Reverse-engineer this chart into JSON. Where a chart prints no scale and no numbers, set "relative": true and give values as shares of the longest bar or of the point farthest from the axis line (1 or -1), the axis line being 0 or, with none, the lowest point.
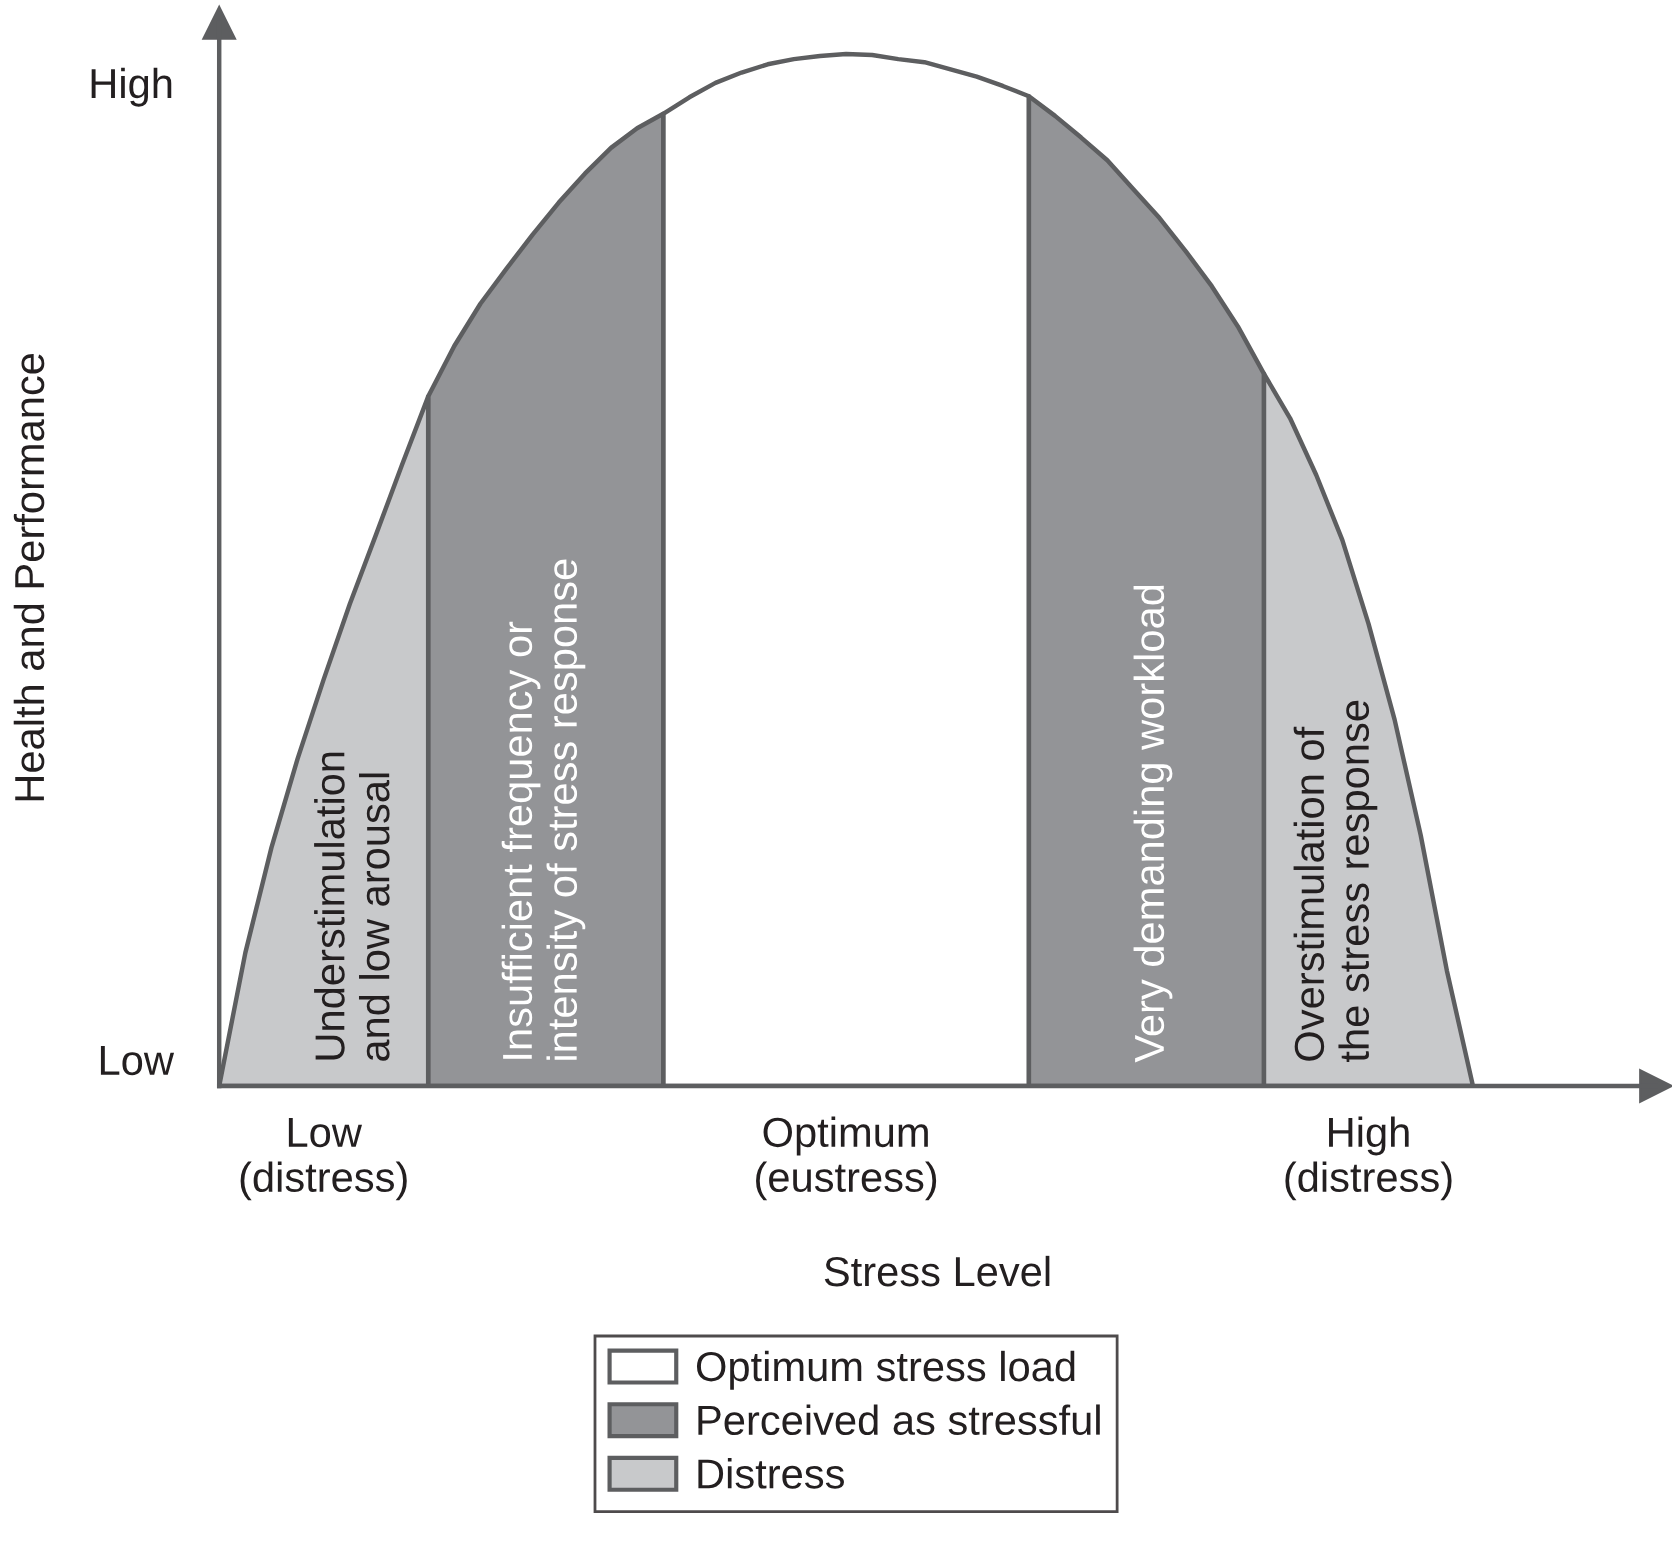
{
  "chart_data": {
    "type": "area",
    "relative": true,
    "xlabel": "Stress Level",
    "ylabel": "Health and Performance",
    "categories": [
      null,
      null,
      null,
      null,
      "Low\n(distress)",
      null,
      null,
      null,
      null,
      null,
      null,
      null,
      null,
      null,
      null,
      null,
      null,
      null,
      null,
      null,
      null,
      null,
      null,
      null,
      "Optimum\n(eustress)",
      null,
      null,
      null,
      null,
      null,
      null,
      null,
      null,
      null,
      null,
      null,
      null,
      null,
      null,
      null,
      null,
      null,
      null,
      null,
      "High\n(distress)",
      null,
      null,
      null,
      null,
      null,
      null,
      null,
      null,
      null,
      null,
      null
    ],
    "series": [
      {
        "name": "Optimum stress load",
        "color": "#ffffff",
        "values": [
          null,
          null,
          null,
          null,
          null,
          null,
          null,
          null,
          null,
          null,
          null,
          null,
          null,
          null,
          null,
          null,
          null,
          0.942,
          0.958,
          0.972,
          0.982,
          0.99,
          0.995,
          0.998,
          1,
          0.999,
          0.995,
          0.992,
          0.985,
          0.978,
          0.969,
          0.959,
          null,
          null,
          null,
          null,
          null,
          null,
          null,
          null,
          null,
          null,
          null,
          null,
          null,
          null,
          null,
          null,
          null,
          null,
          null,
          null,
          null,
          null,
          null,
          null
        ]
      },
      {
        "name": "Perceived as stressful",
        "color": "#939497",
        "values": [
          null,
          null,
          null,
          null,
          null,
          null,
          null,
          null,
          0.668,
          0.717,
          0.758,
          0.792,
          0.825,
          0.856,
          0.884,
          0.909,
          0.928,
          0.942,
          null,
          null,
          null,
          null,
          null,
          null,
          null,
          null,
          null,
          null,
          null,
          null,
          null,
          0.959,
          0.94,
          0.919,
          0.897,
          0.869,
          0.841,
          0.809,
          0.775,
          0.736,
          0.69,
          null,
          null,
          null,
          null,
          null,
          null,
          null,
          null,
          null,
          null,
          null,
          null,
          null,
          null,
          null
        ]
      },
      {
        "name": "Distress",
        "color": "#c8c9cb",
        "values": [
          0,
          0.129,
          0.231,
          0.317,
          0.394,
          0.467,
          0.534,
          0.602,
          0.668,
          null,
          null,
          null,
          null,
          null,
          null,
          null,
          null,
          null,
          null,
          null,
          null,
          null,
          null,
          null,
          null,
          null,
          null,
          null,
          null,
          null,
          null,
          null,
          null,
          null,
          null,
          null,
          null,
          null,
          null,
          null,
          0.69,
          0.647,
          0.592,
          0.529,
          0.448,
          0.355,
          0.243,
          0.112,
          0,
          null,
          null,
          null,
          null,
          null,
          null,
          null
        ]
      }
    ],
    "annotations": [
      "High",
      "Low",
      "Understimulation\nand low arousal",
      "Insufficient frequency or\nintensity of stress response",
      "Very demanding workload",
      "Overstimulation of\nthe stress response"
    ],
    "legend": "bottom"
  }
}
